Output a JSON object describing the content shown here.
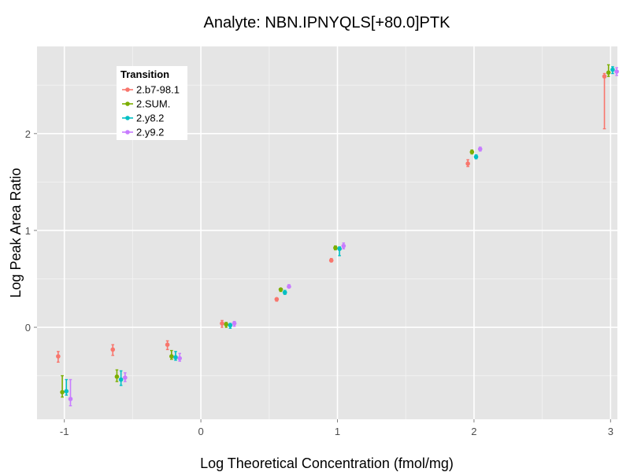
{
  "chart_data": {
    "type": "scatter",
    "title": "Analyte: NBN.IPNYQLS[+80.0]PTK",
    "xlabel": "Log Theoretical Concentration (fmol/mg)",
    "ylabel": "Log Peak Area Ratio",
    "xlim": [
      -1.2,
      3.05
    ],
    "ylim": [
      -0.95,
      2.9
    ],
    "x_ticks": [
      -1,
      0,
      1,
      2,
      3
    ],
    "x_tick_labels": [
      "-1",
      "0",
      "1",
      "2",
      "3"
    ],
    "y_ticks": [
      0,
      1,
      2
    ],
    "y_tick_labels": [
      "0",
      "1",
      "2"
    ],
    "grid": true,
    "legend": {
      "title": "Transition",
      "position": "top-left"
    },
    "series": [
      {
        "name": "2.b7-98.1",
        "color": "#F8766D",
        "x": [
          -1,
          -0.6,
          -0.2,
          0.2,
          0.6,
          1,
          2,
          3
        ],
        "y": [
          -0.3,
          -0.23,
          -0.18,
          0.04,
          0.29,
          0.69,
          1.69,
          2.59
        ],
        "ymin": [
          -0.36,
          -0.29,
          -0.23,
          -0.0,
          0.27,
          0.68,
          1.66,
          2.05
        ],
        "ymax": [
          -0.25,
          -0.18,
          -0.14,
          0.07,
          0.3,
          0.71,
          1.73,
          2.62
        ]
      },
      {
        "name": "2.SUM.",
        "color": "#7CAE00",
        "x": [
          -1,
          -0.6,
          -0.2,
          0.2,
          0.6,
          1,
          2,
          3
        ],
        "y": [
          -0.67,
          -0.51,
          -0.3,
          0.03,
          0.39,
          0.82,
          1.81,
          2.63
        ],
        "ymin": [
          -0.72,
          -0.56,
          -0.33,
          0.0,
          0.37,
          0.8,
          1.79,
          2.59
        ],
        "ymax": [
          -0.5,
          -0.44,
          -0.24,
          0.05,
          0.4,
          0.84,
          1.83,
          2.71
        ]
      },
      {
        "name": "2.y8.2",
        "color": "#00BFC4",
        "x": [
          -1,
          -0.6,
          -0.2,
          0.2,
          0.6,
          1,
          2,
          3
        ],
        "y": [
          -0.66,
          -0.54,
          -0.31,
          0.02,
          0.36,
          0.81,
          1.76,
          2.66
        ],
        "ymin": [
          -0.7,
          -0.6,
          -0.34,
          -0.01,
          0.34,
          0.74,
          1.74,
          2.62
        ],
        "ymax": [
          -0.54,
          -0.45,
          -0.25,
          0.04,
          0.38,
          0.83,
          1.78,
          2.69
        ]
      },
      {
        "name": "2.y9.2",
        "color": "#C77CFF",
        "x": [
          -1,
          -0.6,
          -0.2,
          0.2,
          0.6,
          1,
          2,
          3
        ],
        "y": [
          -0.74,
          -0.52,
          -0.32,
          0.04,
          0.42,
          0.84,
          1.84,
          2.64
        ],
        "ymin": [
          -0.81,
          -0.56,
          -0.35,
          0.01,
          0.41,
          0.81,
          1.82,
          2.6
        ],
        "ymax": [
          -0.54,
          -0.47,
          -0.27,
          0.06,
          0.44,
          0.87,
          1.86,
          2.68
        ]
      }
    ]
  }
}
